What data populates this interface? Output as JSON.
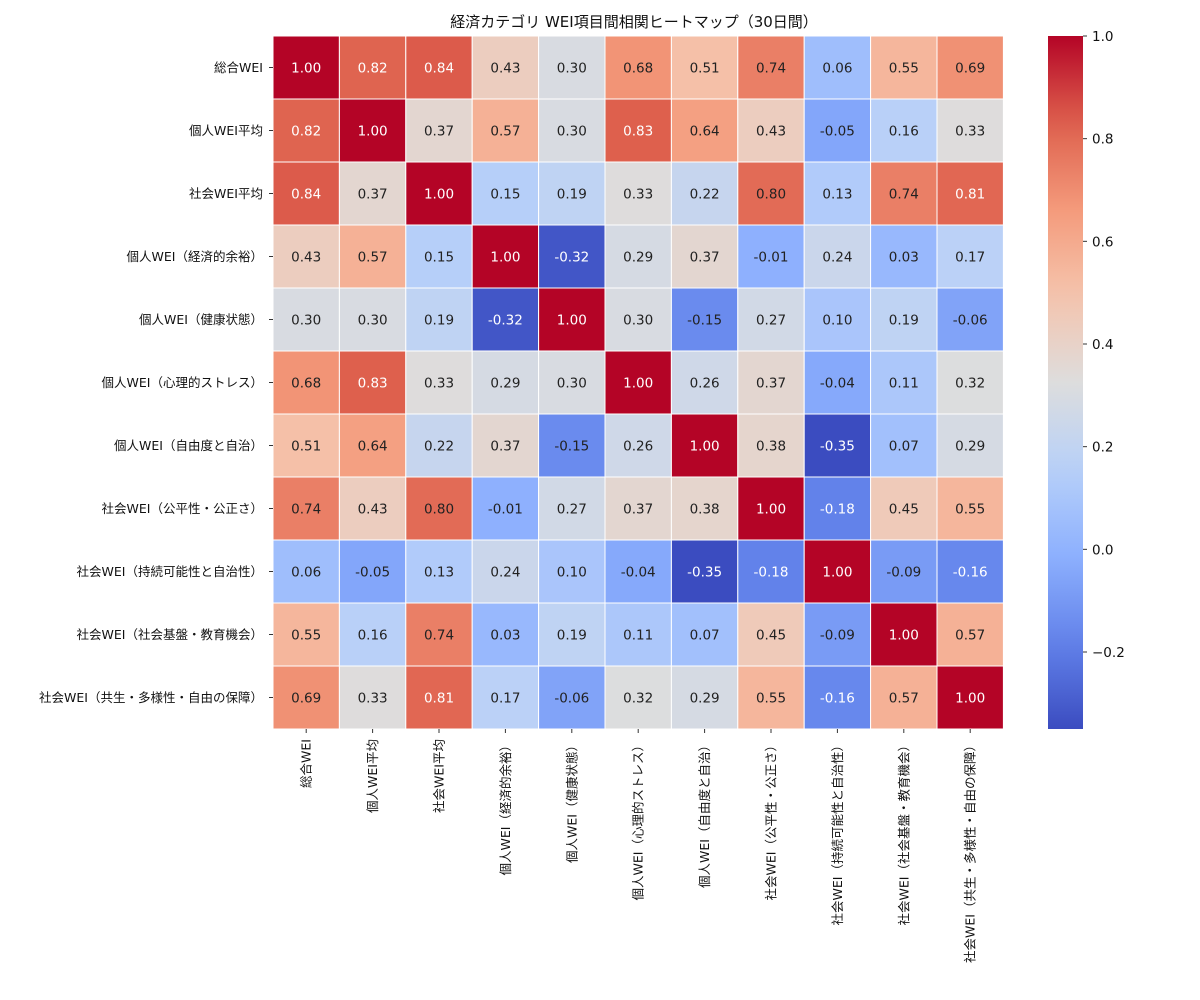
{
  "chart_data": {
    "type": "heatmap",
    "title": "経済カテゴリ WEI項目間相関ヒートマップ（30日間）",
    "labels": [
      "総合WEI",
      "個人WEI平均",
      "社会WEI平均",
      "個人WEI（経済的余裕）",
      "個人WEI（健康状態）",
      "個人WEI（心理的ストレス）",
      "個人WEI（自由度と自治）",
      "社会WEI（公平性・公正さ）",
      "社会WEI（持続可能性と自治性）",
      "社会WEI（社会基盤・教育機会）",
      "社会WEI（共生・多様性・自由の保障）"
    ],
    "matrix": [
      [
        1.0,
        0.82,
        0.84,
        0.43,
        0.3,
        0.68,
        0.51,
        0.74,
        0.06,
        0.55,
        0.69
      ],
      [
        0.82,
        1.0,
        0.37,
        0.57,
        0.3,
        0.83,
        0.64,
        0.43,
        -0.05,
        0.16,
        0.33
      ],
      [
        0.84,
        0.37,
        1.0,
        0.15,
        0.19,
        0.33,
        0.22,
        0.8,
        0.13,
        0.74,
        0.81
      ],
      [
        0.43,
        0.57,
        0.15,
        1.0,
        -0.32,
        0.29,
        0.37,
        -0.01,
        0.24,
        0.03,
        0.17
      ],
      [
        0.3,
        0.3,
        0.19,
        -0.32,
        1.0,
        0.3,
        -0.15,
        0.27,
        0.1,
        0.19,
        -0.06
      ],
      [
        0.68,
        0.83,
        0.33,
        0.29,
        0.3,
        1.0,
        0.26,
        0.37,
        -0.04,
        0.11,
        0.32
      ],
      [
        0.51,
        0.64,
        0.22,
        0.37,
        -0.15,
        0.26,
        1.0,
        0.38,
        -0.35,
        0.07,
        0.29
      ],
      [
        0.74,
        0.43,
        0.8,
        -0.01,
        0.27,
        0.37,
        0.38,
        1.0,
        -0.18,
        0.45,
        0.55
      ],
      [
        0.06,
        -0.05,
        0.13,
        0.24,
        0.1,
        -0.04,
        -0.35,
        -0.18,
        1.0,
        -0.09,
        -0.16
      ],
      [
        0.55,
        0.16,
        0.74,
        0.03,
        0.19,
        0.11,
        0.07,
        0.45,
        -0.09,
        1.0,
        0.57
      ],
      [
        0.69,
        0.33,
        0.81,
        0.17,
        -0.06,
        0.32,
        0.29,
        0.55,
        -0.16,
        0.57,
        1.0
      ]
    ],
    "colormap": "coolwarm",
    "vmin": -0.35,
    "vmax": 1.0,
    "colorbar_ticks": [
      "1.0",
      "0.8",
      "0.6",
      "0.4",
      "0.2",
      "0.0",
      "−0.2"
    ],
    "colorbar_tick_values": [
      1.0,
      0.8,
      0.6,
      0.4,
      0.2,
      0.0,
      -0.2
    ],
    "annotations": true,
    "value_format": "2f",
    "colors": {
      "cmap_low": "#3b4cc0",
      "cmap_mid": "#dddddd",
      "cmap_high": "#b40426",
      "cell_border": "#ffffff",
      "text_dark": "#222222",
      "text_light": "#ffffff"
    }
  }
}
